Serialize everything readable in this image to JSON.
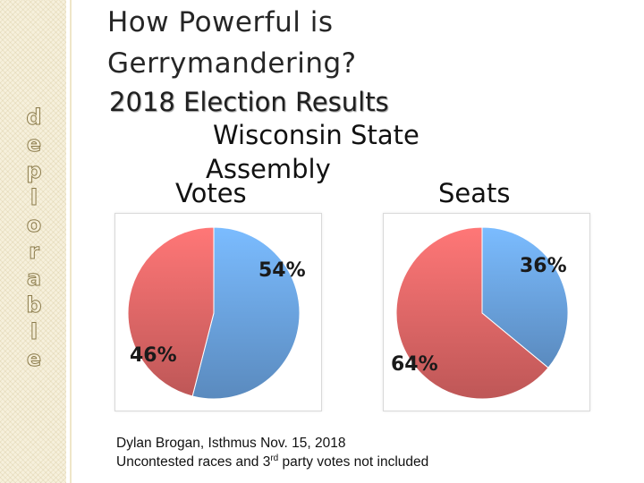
{
  "side_word": [
    "d",
    "e",
    "p",
    "l",
    "o",
    "r",
    "a",
    "b",
    "l",
    "e"
  ],
  "title_line1": "How Powerful is",
  "title_line2": "Gerrymandering?",
  "subtitle": "2018 Election Results",
  "assembly_line1": "Wisconsin State",
  "assembly_line2": "Assembly",
  "colors": {
    "blue": "#6ea8e8",
    "red": "#e86a6a",
    "text": "#1a1a1a"
  },
  "chart_data": [
    {
      "type": "pie",
      "title": "Votes",
      "series": [
        {
          "label": "54%",
          "value": 54,
          "color": "#6ea8e8"
        },
        {
          "label": "46%",
          "value": 46,
          "color": "#e86a6a"
        }
      ]
    },
    {
      "type": "pie",
      "title": "Seats",
      "series": [
        {
          "label": "36%",
          "value": 36,
          "color": "#6ea8e8"
        },
        {
          "label": "64%",
          "value": 64,
          "color": "#e86a6a"
        }
      ]
    }
  ],
  "source": "Dylan Brogan, Isthmus Nov. 15, 2018",
  "note_prefix": "Uncontested races and 3",
  "note_sup": "rd",
  "note_suffix": " party votes not included"
}
